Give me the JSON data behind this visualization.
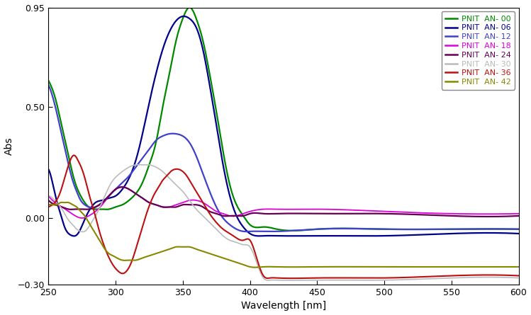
{
  "xlabel": "Wavelength [nm]",
  "ylabel": "Abs",
  "xlim": [
    250,
    600
  ],
  "ylim": [
    -0.3,
    0.95
  ],
  "xticks": [
    250,
    300,
    350,
    400,
    450,
    500,
    550,
    600
  ],
  "yticks": [
    -0.3,
    0.0,
    0.5,
    0.95
  ],
  "series": [
    {
      "label": "PNIT  AN- 00",
      "color": "#008800",
      "lw": 1.6,
      "waypoints": [
        [
          250,
          0.62
        ],
        [
          253,
          0.58
        ],
        [
          256,
          0.52
        ],
        [
          259,
          0.44
        ],
        [
          262,
          0.36
        ],
        [
          265,
          0.28
        ],
        [
          268,
          0.2
        ],
        [
          271,
          0.14
        ],
        [
          274,
          0.1
        ],
        [
          277,
          0.07
        ],
        [
          280,
          0.05
        ],
        [
          285,
          0.04
        ],
        [
          290,
          0.04
        ],
        [
          295,
          0.04
        ],
        [
          300,
          0.05
        ],
        [
          305,
          0.06
        ],
        [
          310,
          0.08
        ],
        [
          315,
          0.11
        ],
        [
          320,
          0.16
        ],
        [
          325,
          0.24
        ],
        [
          330,
          0.34
        ],
        [
          335,
          0.5
        ],
        [
          340,
          0.65
        ],
        [
          345,
          0.8
        ],
        [
          350,
          0.9
        ],
        [
          353,
          0.94
        ],
        [
          355,
          0.95
        ],
        [
          358,
          0.93
        ],
        [
          360,
          0.9
        ],
        [
          365,
          0.8
        ],
        [
          370,
          0.65
        ],
        [
          375,
          0.48
        ],
        [
          380,
          0.3
        ],
        [
          385,
          0.15
        ],
        [
          390,
          0.06
        ],
        [
          395,
          0.01
        ],
        [
          400,
          -0.03
        ],
        [
          410,
          -0.04
        ],
        [
          420,
          -0.05
        ],
        [
          450,
          -0.05
        ],
        [
          500,
          -0.05
        ],
        [
          550,
          -0.05
        ],
        [
          600,
          -0.05
        ]
      ]
    },
    {
      "label": "PNIT  AN- 06",
      "color": "#00008B",
      "lw": 1.6,
      "waypoints": [
        [
          250,
          0.22
        ],
        [
          253,
          0.16
        ],
        [
          256,
          0.08
        ],
        [
          259,
          0.02
        ],
        [
          262,
          -0.04
        ],
        [
          265,
          -0.07
        ],
        [
          268,
          -0.08
        ],
        [
          270,
          -0.08
        ],
        [
          273,
          -0.06
        ],
        [
          276,
          -0.02
        ],
        [
          279,
          0.02
        ],
        [
          282,
          0.05
        ],
        [
          285,
          0.07
        ],
        [
          290,
          0.08
        ],
        [
          295,
          0.09
        ],
        [
          300,
          0.1
        ],
        [
          305,
          0.13
        ],
        [
          310,
          0.18
        ],
        [
          315,
          0.26
        ],
        [
          320,
          0.38
        ],
        [
          325,
          0.52
        ],
        [
          330,
          0.65
        ],
        [
          335,
          0.76
        ],
        [
          340,
          0.84
        ],
        [
          345,
          0.89
        ],
        [
          350,
          0.91
        ],
        [
          355,
          0.9
        ],
        [
          360,
          0.86
        ],
        [
          365,
          0.76
        ],
        [
          370,
          0.6
        ],
        [
          375,
          0.42
        ],
        [
          380,
          0.24
        ],
        [
          385,
          0.1
        ],
        [
          390,
          0.01
        ],
        [
          395,
          -0.04
        ],
        [
          400,
          -0.07
        ],
        [
          410,
          -0.08
        ],
        [
          420,
          -0.08
        ],
        [
          450,
          -0.08
        ],
        [
          500,
          -0.08
        ],
        [
          550,
          -0.07
        ],
        [
          600,
          -0.07
        ]
      ]
    },
    {
      "label": "PNIT  AN- 12",
      "color": "#4040CC",
      "lw": 1.6,
      "waypoints": [
        [
          250,
          0.6
        ],
        [
          253,
          0.55
        ],
        [
          256,
          0.48
        ],
        [
          259,
          0.4
        ],
        [
          262,
          0.32
        ],
        [
          265,
          0.24
        ],
        [
          268,
          0.17
        ],
        [
          271,
          0.12
        ],
        [
          274,
          0.08
        ],
        [
          277,
          0.06
        ],
        [
          280,
          0.05
        ],
        [
          285,
          0.05
        ],
        [
          290,
          0.07
        ],
        [
          295,
          0.1
        ],
        [
          300,
          0.13
        ],
        [
          305,
          0.16
        ],
        [
          310,
          0.19
        ],
        [
          315,
          0.23
        ],
        [
          320,
          0.27
        ],
        [
          325,
          0.31
        ],
        [
          330,
          0.35
        ],
        [
          335,
          0.37
        ],
        [
          340,
          0.38
        ],
        [
          345,
          0.38
        ],
        [
          350,
          0.37
        ],
        [
          355,
          0.34
        ],
        [
          360,
          0.28
        ],
        [
          365,
          0.2
        ],
        [
          370,
          0.12
        ],
        [
          375,
          0.05
        ],
        [
          380,
          0.0
        ],
        [
          385,
          -0.03
        ],
        [
          390,
          -0.05
        ],
        [
          395,
          -0.06
        ],
        [
          400,
          -0.06
        ],
        [
          410,
          -0.06
        ],
        [
          420,
          -0.06
        ],
        [
          450,
          -0.05
        ],
        [
          500,
          -0.05
        ],
        [
          550,
          -0.05
        ],
        [
          600,
          -0.05
        ]
      ]
    },
    {
      "label": "PNIT  AN- 18",
      "color": "#DD00DD",
      "lw": 1.3,
      "waypoints": [
        [
          250,
          0.1
        ],
        [
          255,
          0.07
        ],
        [
          260,
          0.05
        ],
        [
          265,
          0.03
        ],
        [
          270,
          0.01
        ],
        [
          275,
          0.0
        ],
        [
          280,
          0.01
        ],
        [
          285,
          0.03
        ],
        [
          290,
          0.06
        ],
        [
          295,
          0.1
        ],
        [
          300,
          0.13
        ],
        [
          305,
          0.14
        ],
        [
          310,
          0.13
        ],
        [
          315,
          0.11
        ],
        [
          320,
          0.09
        ],
        [
          325,
          0.07
        ],
        [
          330,
          0.06
        ],
        [
          335,
          0.05
        ],
        [
          340,
          0.05
        ],
        [
          345,
          0.06
        ],
        [
          350,
          0.07
        ],
        [
          355,
          0.08
        ],
        [
          360,
          0.08
        ],
        [
          365,
          0.07
        ],
        [
          370,
          0.05
        ],
        [
          375,
          0.03
        ],
        [
          380,
          0.02
        ],
        [
          385,
          0.01
        ],
        [
          390,
          0.01
        ],
        [
          395,
          0.02
        ],
        [
          400,
          0.03
        ],
        [
          410,
          0.04
        ],
        [
          420,
          0.04
        ],
        [
          450,
          0.04
        ],
        [
          500,
          0.03
        ],
        [
          550,
          0.02
        ],
        [
          600,
          0.02
        ]
      ]
    },
    {
      "label": "PNIT  AN- 24",
      "color": "#660055",
      "lw": 1.6,
      "waypoints": [
        [
          250,
          0.08
        ],
        [
          255,
          0.06
        ],
        [
          260,
          0.05
        ],
        [
          265,
          0.04
        ],
        [
          270,
          0.04
        ],
        [
          275,
          0.04
        ],
        [
          280,
          0.04
        ],
        [
          285,
          0.05
        ],
        [
          290,
          0.07
        ],
        [
          295,
          0.1
        ],
        [
          300,
          0.13
        ],
        [
          305,
          0.14
        ],
        [
          310,
          0.13
        ],
        [
          315,
          0.11
        ],
        [
          320,
          0.09
        ],
        [
          325,
          0.07
        ],
        [
          330,
          0.06
        ],
        [
          335,
          0.05
        ],
        [
          340,
          0.05
        ],
        [
          345,
          0.05
        ],
        [
          350,
          0.06
        ],
        [
          355,
          0.06
        ],
        [
          360,
          0.06
        ],
        [
          365,
          0.05
        ],
        [
          370,
          0.03
        ],
        [
          375,
          0.02
        ],
        [
          380,
          0.01
        ],
        [
          385,
          0.01
        ],
        [
          390,
          0.01
        ],
        [
          395,
          0.01
        ],
        [
          400,
          0.02
        ],
        [
          410,
          0.02
        ],
        [
          420,
          0.02
        ],
        [
          450,
          0.02
        ],
        [
          500,
          0.02
        ],
        [
          550,
          0.01
        ],
        [
          600,
          0.01
        ]
      ]
    },
    {
      "label": "PNIT  AN- 30",
      "color": "#bbbbbb",
      "lw": 1.2,
      "waypoints": [
        [
          250,
          0.1
        ],
        [
          253,
          0.09
        ],
        [
          256,
          0.07
        ],
        [
          259,
          0.05
        ],
        [
          262,
          0.02
        ],
        [
          265,
          -0.01
        ],
        [
          268,
          -0.03
        ],
        [
          271,
          -0.05
        ],
        [
          274,
          -0.06
        ],
        [
          277,
          -0.06
        ],
        [
          280,
          -0.04
        ],
        [
          283,
          -0.01
        ],
        [
          286,
          0.02
        ],
        [
          289,
          0.06
        ],
        [
          292,
          0.1
        ],
        [
          295,
          0.14
        ],
        [
          298,
          0.17
        ],
        [
          301,
          0.19
        ],
        [
          305,
          0.21
        ],
        [
          310,
          0.23
        ],
        [
          315,
          0.24
        ],
        [
          320,
          0.24
        ],
        [
          325,
          0.24
        ],
        [
          330,
          0.23
        ],
        [
          335,
          0.21
        ],
        [
          340,
          0.18
        ],
        [
          345,
          0.15
        ],
        [
          350,
          0.12
        ],
        [
          355,
          0.08
        ],
        [
          360,
          0.04
        ],
        [
          365,
          0.01
        ],
        [
          370,
          -0.02
        ],
        [
          375,
          -0.05
        ],
        [
          380,
          -0.08
        ],
        [
          385,
          -0.1
        ],
        [
          390,
          -0.11
        ],
        [
          395,
          -0.12
        ],
        [
          400,
          -0.13
        ],
        [
          405,
          -0.2
        ],
        [
          410,
          -0.27
        ],
        [
          415,
          -0.28
        ],
        [
          420,
          -0.28
        ],
        [
          450,
          -0.28
        ],
        [
          500,
          -0.28
        ],
        [
          550,
          -0.27
        ],
        [
          600,
          -0.27
        ]
      ]
    },
    {
      "label": "PNIT  AN- 36",
      "color": "#BB1111",
      "lw": 1.5,
      "waypoints": [
        [
          250,
          0.05
        ],
        [
          253,
          0.06
        ],
        [
          256,
          0.08
        ],
        [
          259,
          0.12
        ],
        [
          262,
          0.18
        ],
        [
          265,
          0.24
        ],
        [
          268,
          0.28
        ],
        [
          270,
          0.28
        ],
        [
          272,
          0.26
        ],
        [
          275,
          0.22
        ],
        [
          278,
          0.16
        ],
        [
          281,
          0.09
        ],
        [
          284,
          0.03
        ],
        [
          287,
          -0.04
        ],
        [
          290,
          -0.1
        ],
        [
          293,
          -0.15
        ],
        [
          296,
          -0.19
        ],
        [
          299,
          -0.22
        ],
        [
          302,
          -0.24
        ],
        [
          305,
          -0.25
        ],
        [
          308,
          -0.24
        ],
        [
          311,
          -0.21
        ],
        [
          314,
          -0.16
        ],
        [
          317,
          -0.1
        ],
        [
          320,
          -0.04
        ],
        [
          323,
          0.02
        ],
        [
          326,
          0.07
        ],
        [
          329,
          0.11
        ],
        [
          332,
          0.14
        ],
        [
          335,
          0.17
        ],
        [
          338,
          0.19
        ],
        [
          341,
          0.21
        ],
        [
          344,
          0.22
        ],
        [
          347,
          0.22
        ],
        [
          350,
          0.21
        ],
        [
          353,
          0.19
        ],
        [
          356,
          0.16
        ],
        [
          360,
          0.12
        ],
        [
          365,
          0.07
        ],
        [
          370,
          0.02
        ],
        [
          375,
          -0.02
        ],
        [
          380,
          -0.05
        ],
        [
          385,
          -0.07
        ],
        [
          390,
          -0.09
        ],
        [
          395,
          -0.1
        ],
        [
          400,
          -0.1
        ],
        [
          405,
          -0.18
        ],
        [
          410,
          -0.26
        ],
        [
          415,
          -0.27
        ],
        [
          420,
          -0.27
        ],
        [
          450,
          -0.27
        ],
        [
          500,
          -0.27
        ],
        [
          550,
          -0.26
        ],
        [
          600,
          -0.26
        ]
      ]
    },
    {
      "label": "PNIT  AN- 42",
      "color": "#888800",
      "lw": 1.5,
      "waypoints": [
        [
          250,
          0.06
        ],
        [
          253,
          0.06
        ],
        [
          256,
          0.06
        ],
        [
          259,
          0.07
        ],
        [
          262,
          0.07
        ],
        [
          265,
          0.07
        ],
        [
          268,
          0.06
        ],
        [
          271,
          0.05
        ],
        [
          274,
          0.03
        ],
        [
          277,
          0.01
        ],
        [
          280,
          -0.02
        ],
        [
          283,
          -0.05
        ],
        [
          286,
          -0.08
        ],
        [
          289,
          -0.11
        ],
        [
          292,
          -0.14
        ],
        [
          295,
          -0.16
        ],
        [
          298,
          -0.17
        ],
        [
          301,
          -0.18
        ],
        [
          305,
          -0.19
        ],
        [
          310,
          -0.19
        ],
        [
          315,
          -0.19
        ],
        [
          320,
          -0.18
        ],
        [
          325,
          -0.17
        ],
        [
          330,
          -0.16
        ],
        [
          335,
          -0.15
        ],
        [
          340,
          -0.14
        ],
        [
          345,
          -0.13
        ],
        [
          350,
          -0.13
        ],
        [
          355,
          -0.13
        ],
        [
          360,
          -0.14
        ],
        [
          365,
          -0.15
        ],
        [
          370,
          -0.16
        ],
        [
          375,
          -0.17
        ],
        [
          380,
          -0.18
        ],
        [
          385,
          -0.19
        ],
        [
          390,
          -0.2
        ],
        [
          395,
          -0.21
        ],
        [
          400,
          -0.22
        ],
        [
          410,
          -0.22
        ],
        [
          420,
          -0.22
        ],
        [
          450,
          -0.22
        ],
        [
          500,
          -0.22
        ],
        [
          550,
          -0.22
        ],
        [
          600,
          -0.22
        ]
      ]
    }
  ],
  "legend_labels_colors": [
    {
      "label": "PNIT  AN- 00",
      "color": "#008800"
    },
    {
      "label": "PNIT  AN- 06",
      "color": "#00008B"
    },
    {
      "label": "PNIT  AN- 12",
      "color": "#4040CC"
    },
    {
      "label": "PNIT  AN- 18",
      "color": "#DD00DD"
    },
    {
      "label": "PNIT  AN- 24",
      "color": "#660055"
    },
    {
      "label": "PNIT  AN- 30",
      "color": "#bbbbbb"
    },
    {
      "label": "PNIT  AN- 36",
      "color": "#BB1111"
    },
    {
      "label": "PNIT  AN- 42",
      "color": "#888800"
    }
  ]
}
